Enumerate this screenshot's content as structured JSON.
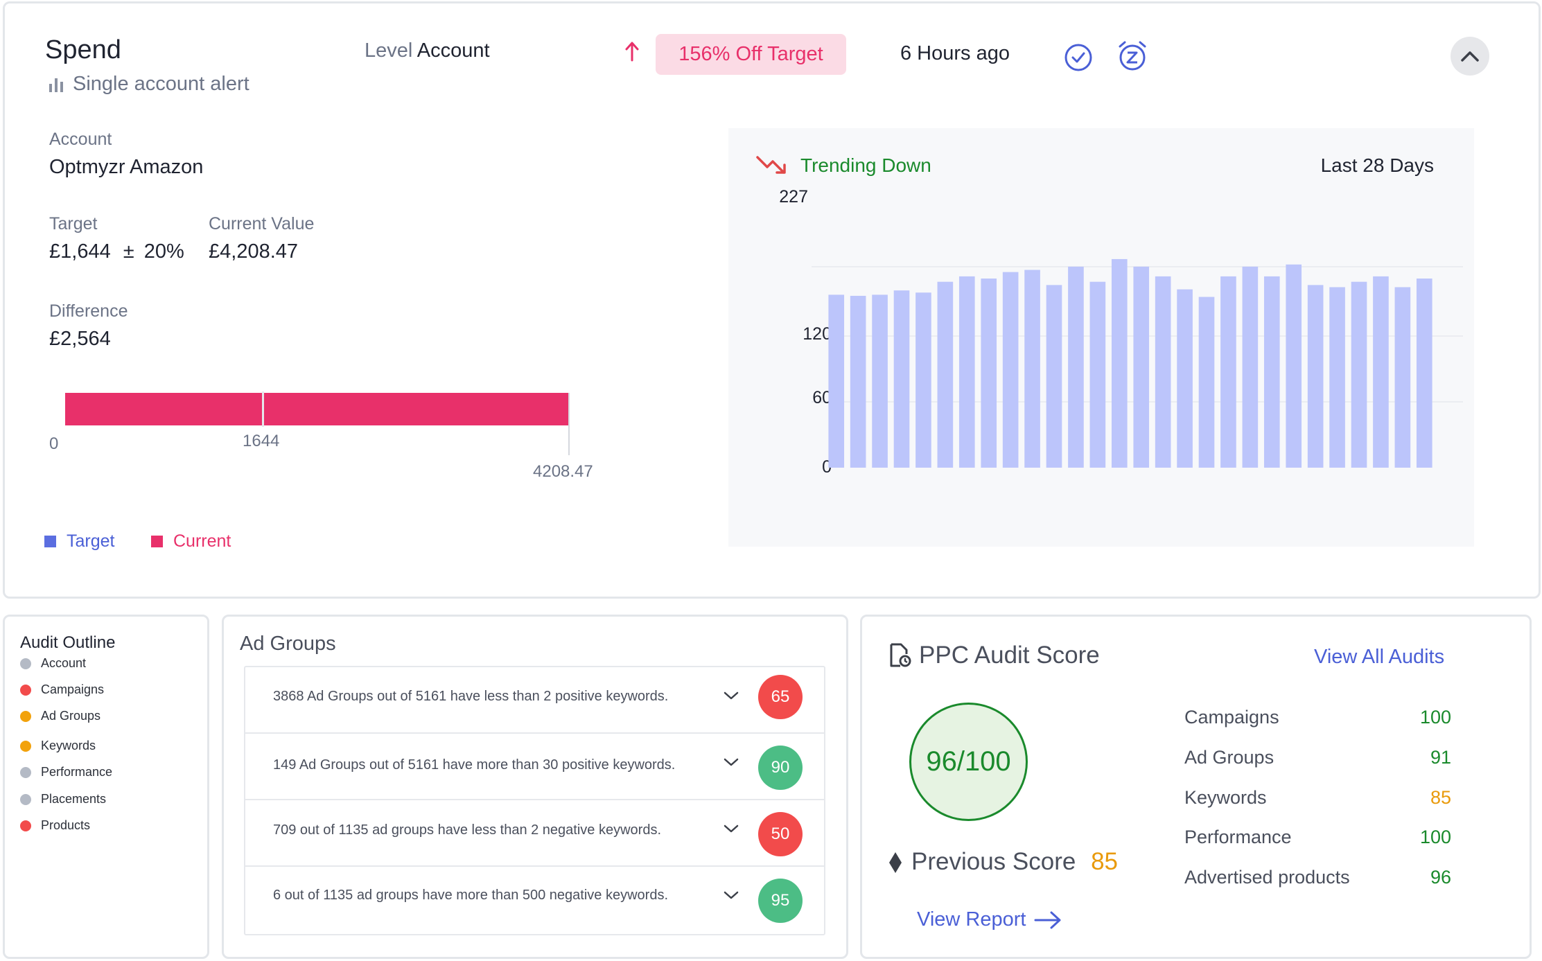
{
  "alert": {
    "title": "Spend",
    "subtitle": "Single account alert",
    "level_label": "Level",
    "level_value": "Account",
    "badge": "156% Off Target",
    "time_ago": "6 Hours ago",
    "account_label": "Account",
    "account_value": "Optmyzr Amazon",
    "target_label": "Target",
    "target_value": "£1,644",
    "target_pm": "±",
    "target_pct": "20%",
    "current_label": "Current Value",
    "current_value": "£4,208.47",
    "difference_label": "Difference",
    "difference_value": "£2,564",
    "bar": {
      "min_label": "0",
      "target_label": "1644",
      "current_label": "4208.47",
      "target_value": 1644,
      "current_value": 4208.47
    },
    "legend": {
      "target": "Target",
      "current": "Current"
    },
    "colors": {
      "accent_pink": "#e8306a",
      "badge_bg": "#fbdbe5",
      "accent_blue": "#5b6ee0",
      "bar_color": "#bcc5fb",
      "trend_green": "#1a8a2c",
      "trend_red": "#e04848"
    }
  },
  "trend": {
    "label": "Trending Down",
    "period": "Last 28 Days"
  },
  "chart_data": {
    "type": "bar",
    "yticks": [
      "227",
      "120",
      "60",
      "0"
    ],
    "ylim": [
      0,
      227
    ],
    "values": [
      160,
      159,
      160,
      164,
      162,
      172,
      177,
      175,
      181,
      183,
      169,
      186,
      172,
      193,
      186,
      177,
      165,
      158,
      177,
      186,
      177,
      188,
      169,
      167,
      172,
      177,
      167,
      175
    ],
    "color": "#bcc5fb"
  },
  "audit_outline": {
    "title": "Audit Outline",
    "items": [
      {
        "label": "Account",
        "color": "#b4bac5"
      },
      {
        "label": "Campaigns",
        "color": "#f24b4b"
      },
      {
        "label": "Ad Groups",
        "color": "#f2a20c"
      },
      {
        "label": "Keywords",
        "color": "#f2a20c"
      },
      {
        "label": "Performance",
        "color": "#b4bac5"
      },
      {
        "label": "Placements",
        "color": "#b4bac5"
      },
      {
        "label": "Products",
        "color": "#f24b4b"
      }
    ]
  },
  "ad_groups": {
    "title": "Ad Groups",
    "rows": [
      {
        "text": "3868 Ad Groups out of 5161 have less than 2 positive keywords.",
        "score": "65",
        "color": "#f24b4b"
      },
      {
        "text": "149 Ad Groups out of 5161 have more than 30 positive keywords.",
        "score": "90",
        "color": "#4cbd85"
      },
      {
        "text": "709 out of 1135 ad groups have less than 2 negative keywords.",
        "score": "50",
        "color": "#f24b4b"
      },
      {
        "text": "6 out of 1135 ad groups have more than 500 negative keywords.",
        "score": "95",
        "color": "#4cbd85"
      }
    ]
  },
  "ppc": {
    "title": "PPC Audit Score",
    "view_all": "View All Audits",
    "score": "96/100",
    "previous_label": "Previous Score",
    "previous_value": "85",
    "view_report": "View Report",
    "rows": [
      {
        "label": "Campaigns",
        "value": "100",
        "color": "#1a8a2c"
      },
      {
        "label": "Ad Groups",
        "value": "91",
        "color": "#1a8a2c"
      },
      {
        "label": "Keywords",
        "value": "85",
        "color": "#e99a0b"
      },
      {
        "label": "Performance",
        "value": "100",
        "color": "#1a8a2c"
      },
      {
        "label": "Advertised products",
        "value": "96",
        "color": "#1a8a2c"
      }
    ]
  }
}
